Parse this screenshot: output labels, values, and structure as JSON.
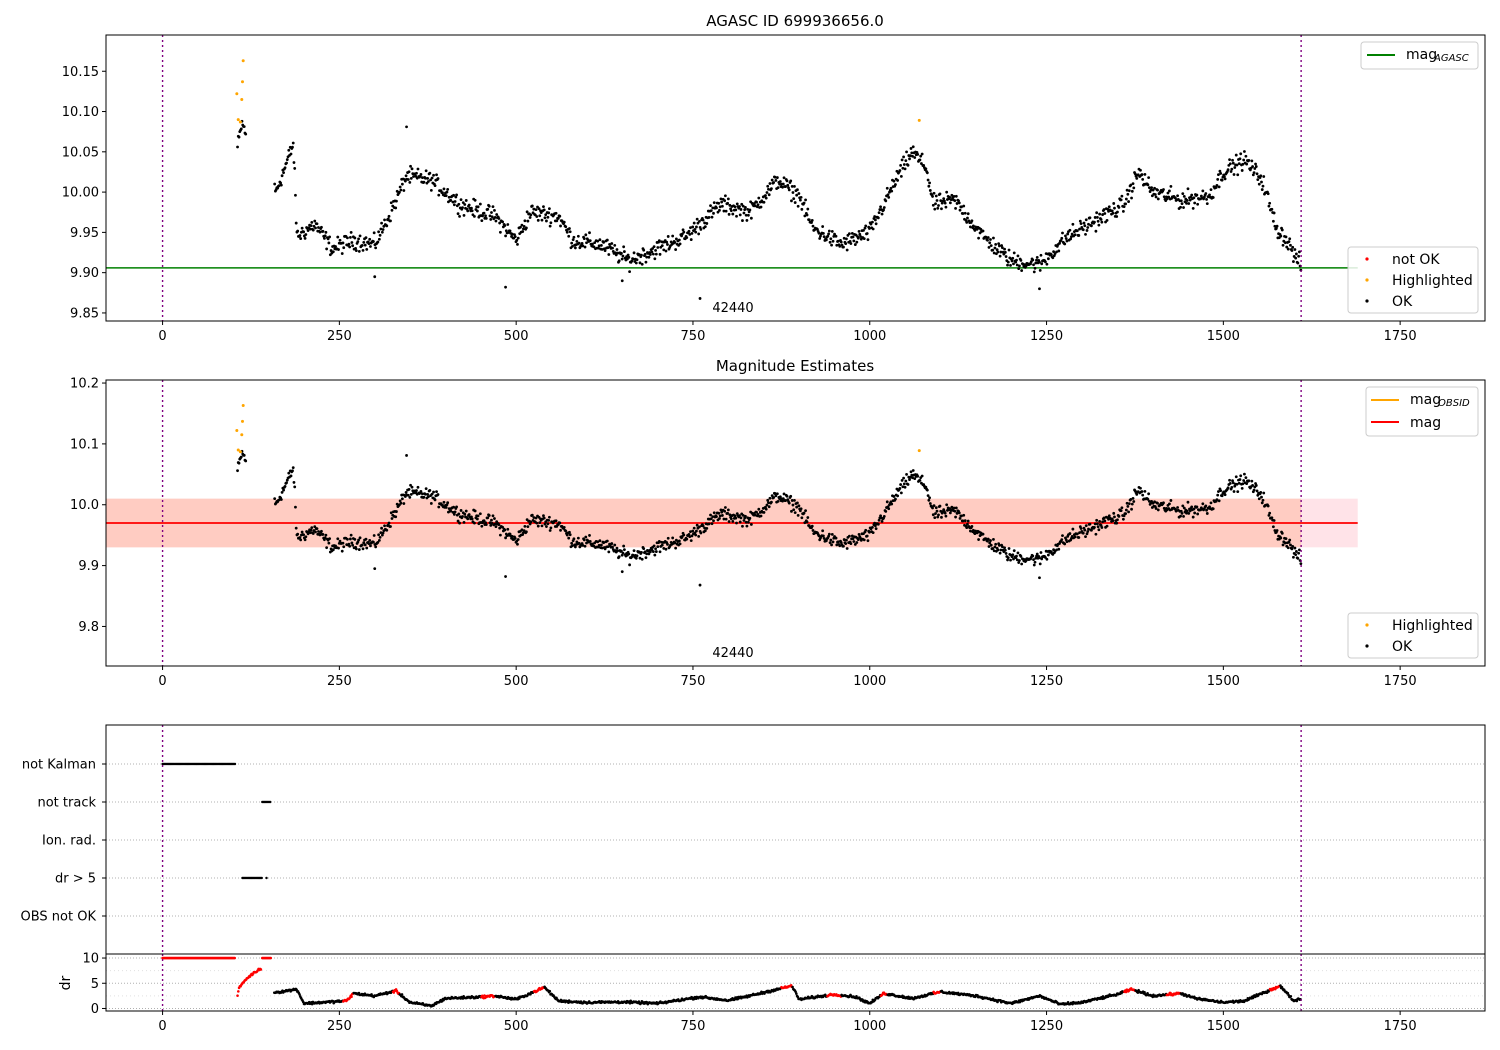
{
  "figure": {
    "title_top": "AGASC ID 699936656.0",
    "title_mid": "Magnitude Estimates"
  },
  "chart_data": [
    {
      "type": "scatter",
      "title": "AGASC ID 699936656.0",
      "xlim": [
        -80,
        1870
      ],
      "ylim": [
        9.84,
        10.195
      ],
      "x_ticks": [
        0,
        250,
        500,
        750,
        1000,
        1250,
        1500,
        1750
      ],
      "y_ticks": [
        9.85,
        9.9,
        9.95,
        10.0,
        10.05,
        10.1,
        10.15
      ],
      "y_tick_labels": [
        "9.85",
        "9.90",
        "9.95",
        "10.00",
        "10.05",
        "10.10",
        "10.15"
      ],
      "grid": false,
      "annotation": "42440",
      "hlines": [
        {
          "name": "mag",
          "subscript": "AGASC",
          "y": 9.906,
          "color": "#008000"
        }
      ],
      "vlines": [
        0,
        1610
      ],
      "legend_lines_position": "top-right",
      "legend_points_position": "bottom-right",
      "series": [
        {
          "name": "not OK",
          "color": "#ff0000",
          "points": []
        },
        {
          "name": "Highlighted",
          "color": "#ffa500",
          "points": [
            [
              105,
              10.122
            ],
            [
              107,
              10.09
            ],
            [
              110,
              10.087
            ],
            [
              112,
              10.115
            ],
            [
              113,
              10.137
            ],
            [
              114,
              10.163
            ],
            [
              1070,
              10.089
            ]
          ]
        },
        {
          "name": "OK",
          "color": "#000000",
          "envelope": [
            [
              106,
              10.055
            ],
            [
              112,
              10.085
            ],
            [
              160,
              10.0
            ],
            [
              175,
              10.035
            ],
            [
              185,
              10.06
            ],
            [
              190,
              9.945
            ],
            [
              215,
              9.96
            ],
            [
              240,
              9.93
            ],
            [
              270,
              9.94
            ],
            [
              300,
              9.935
            ],
            [
              320,
              9.97
            ],
            [
              345,
              10.02
            ],
            [
              380,
              10.015
            ],
            [
              420,
              9.985
            ],
            [
              470,
              9.97
            ],
            [
              500,
              9.94
            ],
            [
              520,
              9.975
            ],
            [
              560,
              9.97
            ],
            [
              580,
              9.94
            ],
            [
              620,
              9.935
            ],
            [
              660,
              9.915
            ],
            [
              700,
              9.93
            ],
            [
              740,
              9.945
            ],
            [
              790,
              9.985
            ],
            [
              830,
              9.975
            ],
            [
              870,
              10.015
            ],
            [
              900,
              9.995
            ],
            [
              920,
              9.955
            ],
            [
              960,
              9.935
            ],
            [
              1000,
              9.95
            ],
            [
              1040,
              10.02
            ],
            [
              1060,
              10.05
            ],
            [
              1080,
              10.03
            ],
            [
              1090,
              9.985
            ],
            [
              1120,
              9.99
            ],
            [
              1160,
              9.945
            ],
            [
              1200,
              9.915
            ],
            [
              1240,
              9.91
            ],
            [
              1280,
              9.945
            ],
            [
              1320,
              9.965
            ],
            [
              1360,
              9.985
            ],
            [
              1380,
              10.025
            ],
            [
              1400,
              10.0
            ],
            [
              1440,
              9.99
            ],
            [
              1480,
              9.995
            ],
            [
              1500,
              10.025
            ],
            [
              1530,
              10.04
            ],
            [
              1555,
              10.015
            ],
            [
              1575,
              9.955
            ],
            [
              1590,
              9.94
            ],
            [
              1605,
              9.915
            ],
            [
              1610,
              9.91
            ]
          ],
          "noise": 0.016,
          "outliers": [
            [
              485,
              9.882
            ],
            [
              760,
              9.868
            ],
            [
              300,
              9.895
            ],
            [
              650,
              9.89
            ],
            [
              1240,
              9.88
            ],
            [
              345,
              10.081
            ]
          ]
        }
      ]
    },
    {
      "type": "scatter",
      "title": "Magnitude Estimates",
      "xlim": [
        -80,
        1870
      ],
      "ylim": [
        9.735,
        10.205
      ],
      "x_ticks": [
        0,
        250,
        500,
        750,
        1000,
        1250,
        1500,
        1750
      ],
      "y_ticks": [
        9.8,
        9.9,
        10.0,
        10.1,
        10.2
      ],
      "y_tick_labels": [
        "9.8",
        "9.9",
        "10.0",
        "10.1",
        "10.2"
      ],
      "grid": false,
      "annotation": "42440",
      "bands": [
        {
          "y0": 9.93,
          "y1": 10.01,
          "x0": -80,
          "x1": 1690,
          "color": "#ffc0cb"
        },
        {
          "y0": 9.93,
          "y1": 10.01,
          "x0": -80,
          "x1": 1610,
          "color": "#ffa07a"
        }
      ],
      "hlines": [
        {
          "name": "mag",
          "subscript": "OBSID",
          "y": null,
          "color": "#ffa500",
          "x0": 0,
          "x1": 0
        },
        {
          "name": "mag",
          "subscript": "",
          "y": 9.97,
          "color": "#ff0000",
          "x0": -80,
          "x1": 1690
        }
      ],
      "vlines": [
        0,
        1610
      ],
      "legend_lines_position": "top-right",
      "legend_points_position": "bottom-right",
      "series": [
        {
          "name": "Highlighted",
          "color": "#ffa500",
          "points": [
            [
              105,
              10.122
            ],
            [
              107,
              10.09
            ],
            [
              110,
              10.087
            ],
            [
              112,
              10.115
            ],
            [
              113,
              10.137
            ],
            [
              114,
              10.163
            ],
            [
              1070,
              10.089
            ]
          ]
        },
        {
          "name": "OK",
          "color": "#000000",
          "same_as_panel": 0
        }
      ]
    },
    {
      "type": "scatter",
      "title": "",
      "xlim": [
        -80,
        1870
      ],
      "x_ticks": [
        0,
        250,
        500,
        750,
        1000,
        1250,
        1500,
        1750
      ],
      "categories": [
        "not Kalman",
        "not track",
        "Ion. rad.",
        "dr > 5",
        "OBS not OK"
      ],
      "flag_segments": [
        {
          "category": "not Kalman",
          "x0": 0,
          "x1": 103
        },
        {
          "category": "not track",
          "x0": 141,
          "x1": 153
        },
        {
          "category": "dr > 5",
          "x0": 113,
          "x1": 141
        },
        {
          "category": "dr > 5",
          "x0": 147,
          "x1": 148
        }
      ],
      "grid": true,
      "vlines": [
        0,
        1610
      ]
    },
    {
      "type": "scatter",
      "title": "",
      "ylabel": "dr",
      "xlim": [
        -80,
        1870
      ],
      "ylim": [
        -0.5,
        10.8
      ],
      "x_ticks": [
        0,
        250,
        500,
        750,
        1000,
        1250,
        1500,
        1750
      ],
      "y_ticks": [
        0,
        5,
        10
      ],
      "y_tick_labels": [
        "0",
        "5",
        "10"
      ],
      "grid": true,
      "vlines": [
        0,
        1610
      ],
      "saturated_segments": [
        [
          0,
          103
        ],
        [
          141,
          153
        ]
      ],
      "ramp": {
        "x0": 106,
        "x1": 140,
        "y0": 2.5,
        "y1": 8.0
      },
      "envelope": [
        [
          160,
          3.2
        ],
        [
          190,
          3.8
        ],
        [
          200,
          1.0
        ],
        [
          260,
          1.5
        ],
        [
          270,
          3.0
        ],
        [
          300,
          2.5
        ],
        [
          330,
          3.5
        ],
        [
          350,
          1.2
        ],
        [
          380,
          0.5
        ],
        [
          400,
          2.0
        ],
        [
          450,
          2.3
        ],
        [
          470,
          2.5
        ],
        [
          500,
          1.8
        ],
        [
          540,
          4.2
        ],
        [
          560,
          1.5
        ],
        [
          600,
          1.2
        ],
        [
          650,
          1.3
        ],
        [
          700,
          1.0
        ],
        [
          760,
          2.3
        ],
        [
          800,
          1.6
        ],
        [
          830,
          2.5
        ],
        [
          890,
          4.5
        ],
        [
          900,
          1.8
        ],
        [
          950,
          2.8
        ],
        [
          980,
          2.3
        ],
        [
          1000,
          1.0
        ],
        [
          1020,
          3.0
        ],
        [
          1060,
          2.0
        ],
        [
          1100,
          3.3
        ],
        [
          1150,
          2.5
        ],
        [
          1200,
          1.0
        ],
        [
          1240,
          2.5
        ],
        [
          1270,
          0.8
        ],
        [
          1300,
          1.2
        ],
        [
          1350,
          2.8
        ],
        [
          1370,
          3.8
        ],
        [
          1400,
          2.5
        ],
        [
          1440,
          3.0
        ],
        [
          1460,
          2.0
        ],
        [
          1500,
          1.2
        ],
        [
          1530,
          1.5
        ],
        [
          1580,
          4.5
        ],
        [
          1600,
          1.5
        ],
        [
          1610,
          2.0
        ]
      ],
      "red_segments": [
        [
          106,
          150
        ],
        [
          255,
          270
        ],
        [
          325,
          335
        ],
        [
          450,
          470
        ],
        [
          525,
          540
        ],
        [
          875,
          890
        ],
        [
          940,
          960
        ],
        [
          1015,
          1025
        ],
        [
          1090,
          1100
        ],
        [
          1360,
          1375
        ],
        [
          1420,
          1440
        ],
        [
          1565,
          1580
        ]
      ]
    }
  ]
}
